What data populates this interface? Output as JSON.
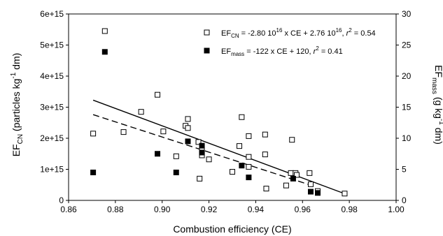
{
  "chart_data": {
    "type": "scatter",
    "title": "",
    "xlabel": "Combustion efficiency (CE)",
    "ylabel_left": {
      "main": "EF",
      "sub": "CN",
      "rest": " (particles kg",
      "sup": "-1",
      "end": " dm)"
    },
    "ylabel_right": {
      "main": "EF",
      "sub": "mass",
      "rest": " (g kg",
      "sup": "-1",
      "end": " dm)"
    },
    "xlim": [
      0.86,
      1.0
    ],
    "ylim_left": [
      0,
      6000000000000000.0
    ],
    "ylim_right": [
      0,
      30
    ],
    "x_ticks": [
      "0.86",
      "0.88",
      "0.90",
      "0.92",
      "0.94",
      "0.96",
      "0.98",
      "1.00"
    ],
    "y_left_ticks": [
      "0",
      "1e+15",
      "2e+15",
      "3e+15",
      "4e+15",
      "5e+15",
      "6e+15"
    ],
    "y_right_ticks": [
      "0",
      "5",
      "10",
      "15",
      "20",
      "25",
      "30"
    ],
    "grid": false,
    "legend_position": "top-right",
    "series": [
      {
        "name_main": "EF",
        "name_sub": "CN",
        "name_rest": " = -2.80 10",
        "name_sup": "16",
        "name_rest2": " x CE + 2.76 10",
        "name_sup2": "16",
        "name_rest3": ", ",
        "name_r": "r",
        "name_sup3": "2",
        "name_end": " = 0.54",
        "axis": "left",
        "marker": "open-square",
        "fit": {
          "slope": -2.8e+16,
          "intercept": 2.76e+16,
          "x_range": [
            0.8705,
            0.978
          ],
          "style": "solid"
        },
        "points": [
          [
            0.8705,
            2150000000000000.0
          ],
          [
            0.8755,
            5450000000000000.0
          ],
          [
            0.8835,
            2200000000000000.0
          ],
          [
            0.891,
            2850000000000000.0
          ],
          [
            0.898,
            3400000000000000.0
          ],
          [
            0.9005,
            2220000000000000.0
          ],
          [
            0.906,
            1420000000000000.0
          ],
          [
            0.91,
            2400000000000000.0
          ],
          [
            0.911,
            2620000000000000.0
          ],
          [
            0.911,
            2330000000000000.0
          ],
          [
            0.9155,
            1880000000000000.0
          ],
          [
            0.916,
            700000000000000.0
          ],
          [
            0.917,
            1450000000000000.0
          ],
          [
            0.917,
            1620000000000000.0
          ],
          [
            0.92,
            1320000000000000.0
          ],
          [
            0.93,
            920000000000000.0
          ],
          [
            0.933,
            1750000000000000.0
          ],
          [
            0.934,
            2680000000000000.0
          ],
          [
            0.937,
            2070000000000000.0
          ],
          [
            0.937,
            1080000000000000.0
          ],
          [
            0.937,
            1400000000000000.0
          ],
          [
            0.944,
            2120000000000000.0
          ],
          [
            0.944,
            1480000000000000.0
          ],
          [
            0.9445,
            380000000000000.0
          ],
          [
            0.953,
            480000000000000.0
          ],
          [
            0.955,
            880000000000000.0
          ],
          [
            0.9555,
            1950000000000000.0
          ],
          [
            0.957,
            880000000000000.0
          ],
          [
            0.9575,
            820000000000000.0
          ],
          [
            0.963,
            880000000000000.0
          ],
          [
            0.9635,
            520000000000000.0
          ],
          [
            0.9665,
            300000000000000.0
          ],
          [
            0.978,
            220000000000000.0
          ]
        ]
      },
      {
        "name_main": "EF",
        "name_sub": "mass",
        "name_rest": " = -122 x CE + 120, ",
        "name_r": "r",
        "name_sup": "2",
        "name_end": " = 0.41",
        "axis": "right",
        "marker": "filled-square",
        "fit": {
          "slope": -122,
          "intercept": 120,
          "x_range": [
            0.8705,
            0.966
          ],
          "style": "dashed"
        },
        "points": [
          [
            0.8705,
            4.5
          ],
          [
            0.8755,
            23.9
          ],
          [
            0.898,
            7.5
          ],
          [
            0.906,
            4.5
          ],
          [
            0.911,
            9.5
          ],
          [
            0.917,
            8.8
          ],
          [
            0.917,
            7.7
          ],
          [
            0.934,
            5.6
          ],
          [
            0.937,
            3.7
          ],
          [
            0.956,
            3.5
          ],
          [
            0.9635,
            1.4
          ],
          [
            0.9665,
            1.2
          ]
        ]
      }
    ]
  }
}
